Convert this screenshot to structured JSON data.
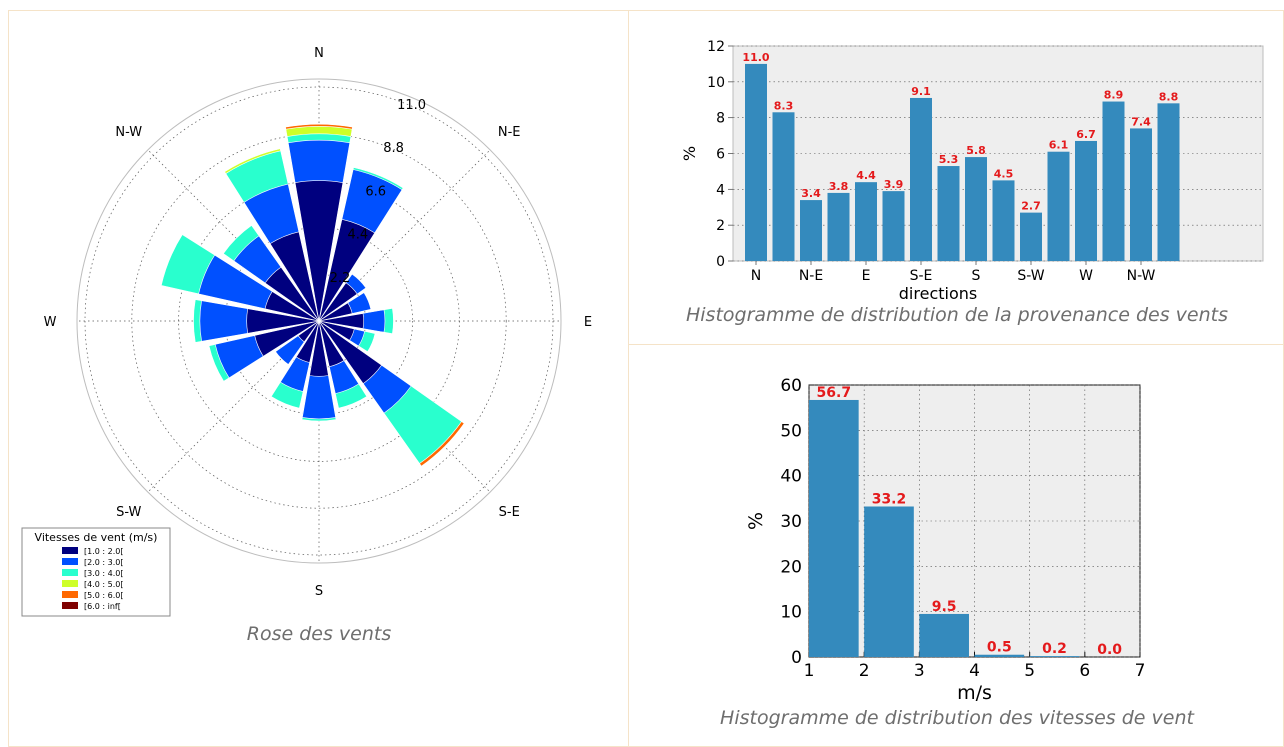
{
  "colors": {
    "bar": "#348ABD",
    "value_label": "#E41A1C",
    "plot_bg": "#EEEEEE",
    "speed_bins": [
      "#00007F",
      "#0050FF",
      "#29FFCE",
      "#CEFF29",
      "#FF6800",
      "#7F0000"
    ]
  },
  "panels": {
    "rose": {
      "caption": "Rose des vents"
    },
    "direction_histogram": {
      "caption": "Histogramme de distribution de la provenance des vents"
    },
    "speed_histogram": {
      "caption": "Histogramme de distribution des vitesses de vent"
    }
  },
  "chart_data": [
    {
      "type": "windrose",
      "directions": [
        "N",
        "NNE",
        "N-E",
        "ENE",
        "E",
        "ESE",
        "S-E",
        "SSE",
        "S",
        "SSW",
        "S-W",
        "WSW",
        "W",
        "WNW",
        "N-W",
        "NNW"
      ],
      "direction_labels": [
        "N",
        "N-E",
        "E",
        "S-E",
        "S",
        "S-W",
        "W",
        "N-W"
      ],
      "radial_ticks": [
        "2.2",
        "4.4",
        "6.6",
        "8.8",
        "11.0"
      ],
      "rlim": [
        0,
        11.0
      ],
      "legend": {
        "title": "Vitesses de vent (m/s)",
        "placement": "lower-left",
        "entries": [
          "[1.0 : 2.0[",
          "[2.0 : 3.0[",
          "[3.0 : 4.0[",
          "[4.0 : 5.0[",
          "[5.0 : 6.0[",
          "[6.0 : inf["
        ]
      },
      "cumulative_percent": [
        [
          6.6,
          8.5,
          8.8,
          9.15,
          9.25,
          9.25
        ],
        [
          4.9,
          7.3,
          7.4,
          7.4,
          7.4,
          7.4
        ],
        [
          2.2,
          2.7,
          2.7,
          2.7,
          2.7,
          2.7
        ],
        [
          1.6,
          2.5,
          2.5,
          2.5,
          2.5,
          2.5
        ],
        [
          2.1,
          3.1,
          3.5,
          3.5,
          3.5,
          3.5
        ],
        [
          1.7,
          2.2,
          2.7,
          2.7,
          2.7,
          2.7
        ],
        [
          3.6,
          5.3,
          8.2,
          8.2,
          8.35,
          8.35
        ],
        [
          2.2,
          3.5,
          4.2,
          4.2,
          4.2,
          4.2
        ],
        [
          2.6,
          4.6,
          4.7,
          4.7,
          4.7,
          4.7
        ],
        [
          2.0,
          3.4,
          4.2,
          4.2,
          4.2,
          4.2
        ],
        [
          1.2,
          2.5,
          2.5,
          2.5,
          2.5,
          2.5
        ],
        [
          3.1,
          5.0,
          5.3,
          5.3,
          5.3,
          5.3
        ],
        [
          3.4,
          5.6,
          5.9,
          5.9,
          5.9,
          5.9
        ],
        [
          2.6,
          5.8,
          7.6,
          7.6,
          7.6,
          7.6
        ],
        [
          3.1,
          4.9,
          5.5,
          5.5,
          5.5,
          5.5
        ],
        [
          4.3,
          6.6,
          8.2,
          8.3,
          8.3,
          8.3
        ]
      ]
    },
    {
      "type": "bar",
      "categories": [
        "N",
        "NNE",
        "N-E",
        "ENE",
        "E",
        "ESE",
        "S-E",
        "SSE",
        "S",
        "SSW",
        "S-W",
        "WSW",
        "W",
        "WNW",
        "N-W",
        "NNW"
      ],
      "values": [
        11.0,
        8.3,
        3.4,
        3.8,
        4.4,
        3.9,
        9.1,
        5.3,
        5.8,
        4.5,
        2.7,
        6.1,
        6.7,
        8.9,
        7.4,
        8.8
      ],
      "data_labels": [
        "11.0",
        "8.3",
        "3.4",
        "3.8",
        "4.4",
        "3.9",
        "9.1",
        "5.3",
        "5.8",
        "4.5",
        "2.7",
        "6.1",
        "6.7",
        "8.9",
        "7.4",
        "8.8"
      ],
      "xtick_labels": [
        "N",
        "N-E",
        "E",
        "S-E",
        "S",
        "S-W",
        "W",
        "N-W"
      ],
      "xlabel": "directions",
      "ylabel": "%",
      "ylim": [
        0,
        12
      ],
      "yticks": [
        0,
        2,
        4,
        6,
        8,
        10,
        12
      ],
      "grid": true
    },
    {
      "type": "bar",
      "x": [
        1,
        2,
        3,
        4,
        5,
        6
      ],
      "values": [
        56.7,
        33.2,
        9.5,
        0.5,
        0.2,
        0.0
      ],
      "data_labels": [
        "56.7",
        "33.2",
        "9.5",
        "0.5",
        "0.2",
        "0.0"
      ],
      "xlabel": "m/s",
      "ylabel": "%",
      "xlim": [
        1,
        7
      ],
      "xticks": [
        1,
        2,
        3,
        4,
        5,
        6,
        7
      ],
      "ylim": [
        0,
        60
      ],
      "yticks": [
        0,
        10,
        20,
        30,
        40,
        50,
        60
      ],
      "grid": true
    }
  ]
}
